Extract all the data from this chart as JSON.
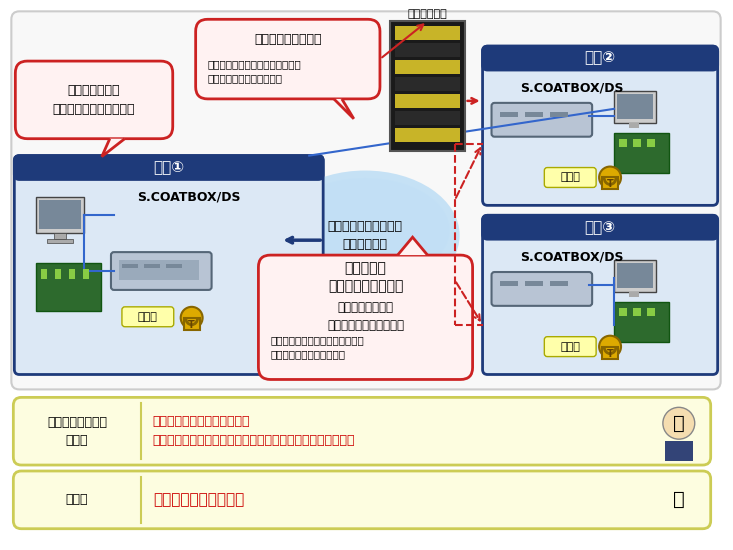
{
  "bg_color": "#ffffff",
  "outer_bg": "#f5f5f5",
  "outer_border": "#bbbbbb",
  "location1_title": "拠点①",
  "location2_title": "拠点②",
  "location3_title": "拠点③",
  "loc_header_bg": "#1e3a7a",
  "loc_header_text": "#ffffff",
  "loc_box_bg": "#dce8f5",
  "loc_border": "#1e3a7a",
  "coatbox_label": "S.COATBOX/DS",
  "data_label": "データ",
  "key_service_title": "【鍵管理サービス】",
  "key_service_body": "・日立情報通信エンジニアリング\nからの提供サービスを活用",
  "key_server_label": "鍵管理サーバ",
  "callout_bg": "#fff2f2",
  "callout_border": "#cc2222",
  "internet_label": "インターネット回線を\n高セキュア化",
  "internet_bg": "#c0dff5",
  "hitachi_title": "日立独自の\n【鍵付け替え技術】",
  "hitachi_body1": "拠点間で活用する\n暗号鍵を自動でやりとり",
  "hitachi_body2": "・日立情報通信エンジニアリング\nからの提供サービスを活用",
  "gateway_text": "通信拠点ごとに\nゲートウェイとして設置",
  "row1_label": "セキュリティ部門\n管理者",
  "row1_text": "鍵の管理作業が削減できる！\n設置するだけで既存のインターネット回線を高セキュア化！",
  "row2_label": "利用者",
  "row2_text": "自動で暗号化される！",
  "bottom_bg": "#fdfde0",
  "bottom_border": "#cccc55",
  "bottom_text_color": "#cc0000",
  "red": "#cc2222",
  "navy": "#1e3a7a",
  "dashed_red": "#cc2222"
}
